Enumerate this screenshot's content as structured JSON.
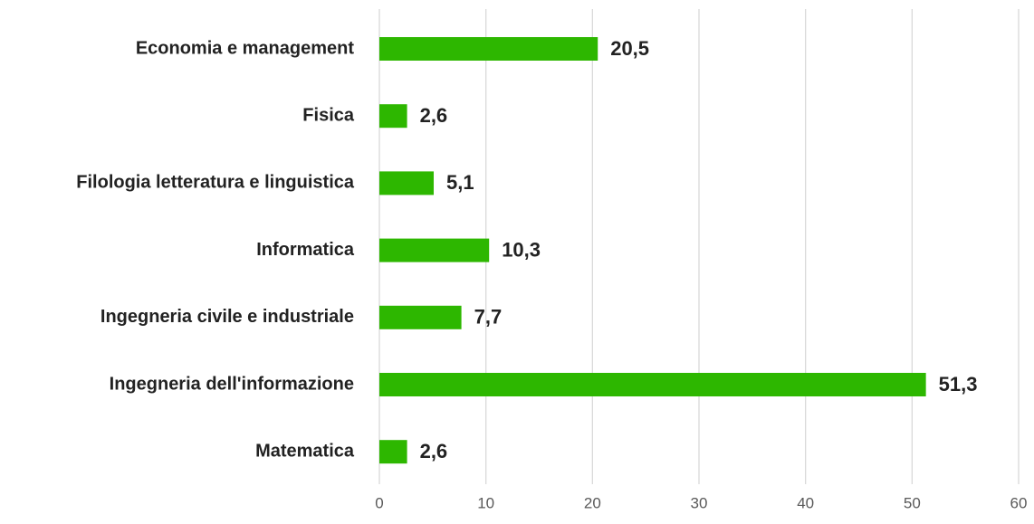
{
  "chart_data": {
    "type": "hbar",
    "categories": [
      "Economia e management",
      "Fisica",
      "Filologia letteratura e linguistica",
      "Informatica",
      "Ingegneria civile e industriale",
      "Ingegneria dell'informazione",
      "Matematica"
    ],
    "values": [
      20.5,
      2.6,
      5.1,
      10.3,
      7.7,
      51.3,
      2.6
    ],
    "value_labels": [
      "20,5",
      "2,6",
      "5,1",
      "10,3",
      "7,7",
      "51,3",
      "2,6"
    ],
    "color": "#2db700",
    "xlim": [
      0,
      60
    ],
    "xticks": [
      0,
      10,
      20,
      30,
      40,
      50,
      60
    ],
    "grid": true
  }
}
